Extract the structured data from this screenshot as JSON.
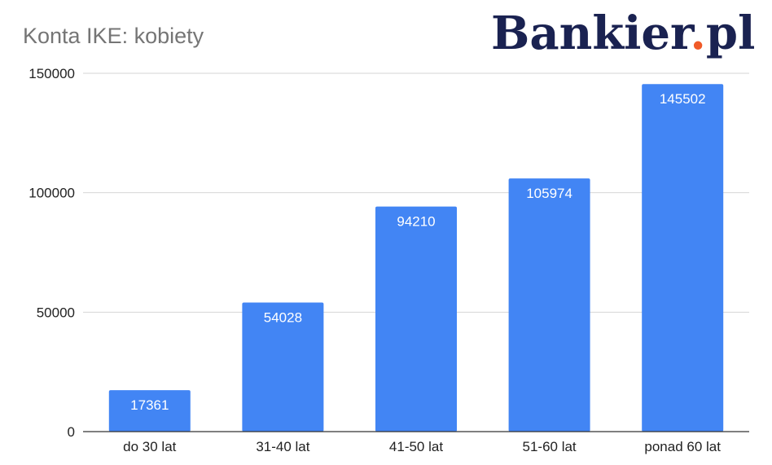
{
  "logo": {
    "name": "Bankier",
    "dot": ".",
    "suffix": "pl",
    "colors": {
      "text": "#1a2251",
      "dot": "#f05a28"
    }
  },
  "chart_data": {
    "type": "bar",
    "title": "Konta IKE: kobiety",
    "categories": [
      "do 30 lat",
      "31-40 lat",
      "41-50 lat",
      "51-60 lat",
      "ponad 60 lat"
    ],
    "values": [
      17361,
      54028,
      94210,
      105974,
      145502
    ],
    "data_labels": [
      "17361",
      "54028",
      "94210",
      "105974",
      "145502"
    ],
    "yticks": [
      0,
      50000,
      100000,
      150000
    ],
    "ylim": [
      0,
      150000
    ],
    "xlabel": "",
    "ylabel": "",
    "grid": true,
    "bar_color": "#4285f4"
  }
}
